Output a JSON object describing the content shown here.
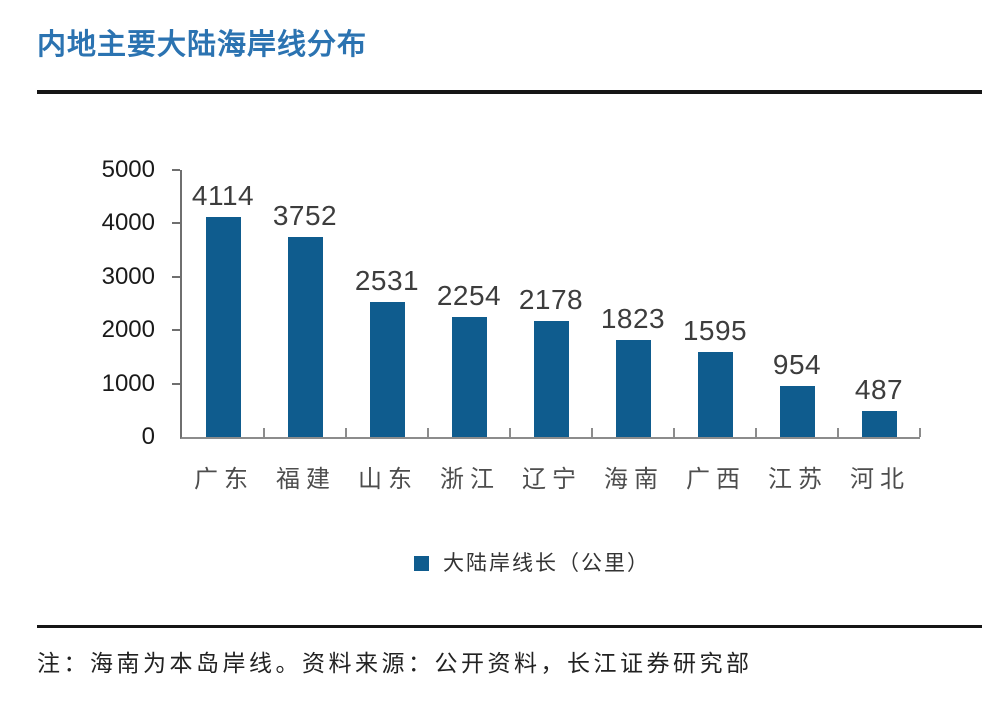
{
  "header": {
    "title": "内地主要大陆海岸线分布"
  },
  "chart_data": {
    "type": "bar",
    "title": "内地主要大陆海岸线分布",
    "categories": [
      "广东",
      "福建",
      "山东",
      "浙江",
      "辽宁",
      "海南",
      "广西",
      "江苏",
      "河北"
    ],
    "values": [
      4114,
      3752,
      2531,
      2254,
      2178,
      1823,
      1595,
      954,
      487
    ],
    "series": [
      {
        "name": "大陆岸线长（公里）",
        "values": [
          4114,
          3752,
          2531,
          2254,
          2178,
          1823,
          1595,
          954,
          487
        ]
      }
    ],
    "xlabel": "",
    "ylabel": "",
    "ylim": [
      0,
      5000
    ],
    "yticks": [
      0,
      1000,
      2000,
      3000,
      4000,
      5000
    ],
    "grid": false,
    "legend_position": "bottom",
    "value_labels_shown": true,
    "bar_color": "#0F5C8E"
  },
  "legend": {
    "label": "大陆岸线长（公里）",
    "marker": "square-icon",
    "marker_color": "#0F5C8E"
  },
  "footer": {
    "note": "注：海南为本岛岸线。资料来源：公开资料，长江证券研究部"
  },
  "colors": {
    "title_blue": "#2B73B1",
    "bar_blue": "#0F5C8E",
    "axis_gray": "#6F6F6F",
    "value_label": "#3D3D3D",
    "category_label": "#4D4D4D",
    "divider_black": "#161616"
  }
}
